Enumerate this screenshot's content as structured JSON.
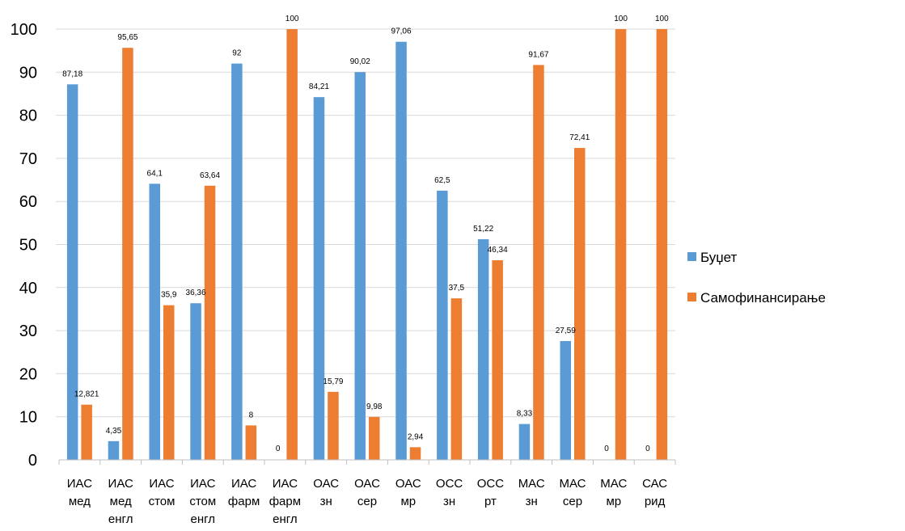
{
  "chart_data": {
    "type": "bar",
    "categories": [
      [
        "ИАС",
        "мед"
      ],
      [
        "ИАС",
        "мед",
        "енгл"
      ],
      [
        "ИАС",
        "стом"
      ],
      [
        "ИАС",
        "стом",
        "енгл"
      ],
      [
        "ИАС",
        "фарм"
      ],
      [
        "ИАС",
        "фарм",
        "енгл"
      ],
      [
        "ОАС",
        "зн"
      ],
      [
        "ОАС",
        "сер"
      ],
      [
        "ОАС",
        "мр"
      ],
      [
        "ОСС",
        "зн"
      ],
      [
        "ОСС",
        "рт"
      ],
      [
        "МАС",
        "зн"
      ],
      [
        "МАС",
        "сер"
      ],
      [
        "МАС",
        "мр"
      ],
      [
        "САС",
        "рид"
      ]
    ],
    "series": [
      {
        "name": "Буџет",
        "color": "#5B9BD5",
        "values": [
          87.18,
          4.35,
          64.1,
          36.36,
          92,
          0,
          84.21,
          90.02,
          97.06,
          62.5,
          51.22,
          8.33,
          27.59,
          0,
          0
        ],
        "labels": [
          "87,18",
          "4,35",
          "64,1",
          "36,36",
          "92",
          "0",
          "84,21",
          "90,02",
          "97,06",
          "62,5",
          "51,22",
          "8,33",
          "27,59",
          "0",
          "0"
        ]
      },
      {
        "name": "Самофинансирање",
        "color": "#ED7D31",
        "values": [
          12.821,
          95.65,
          35.9,
          63.64,
          8,
          100,
          15.79,
          9.98,
          2.94,
          37.5,
          46.34,
          91.67,
          72.41,
          100,
          100
        ],
        "labels": [
          "12,821",
          "95,65",
          "35,9",
          "63,64",
          "8",
          "100",
          "15,79",
          "9,98",
          "2,94",
          "37,5",
          "46,34",
          "91,67",
          "72,41",
          "100",
          "100"
        ]
      }
    ],
    "yticks": [
      "0",
      "10",
      "20",
      "30",
      "40",
      "50",
      "60",
      "70",
      "80",
      "90",
      "100"
    ],
    "ylim": [
      0,
      100
    ],
    "grid": true,
    "legend": "right",
    "title": "",
    "xlabel": "",
    "ylabel": ""
  }
}
